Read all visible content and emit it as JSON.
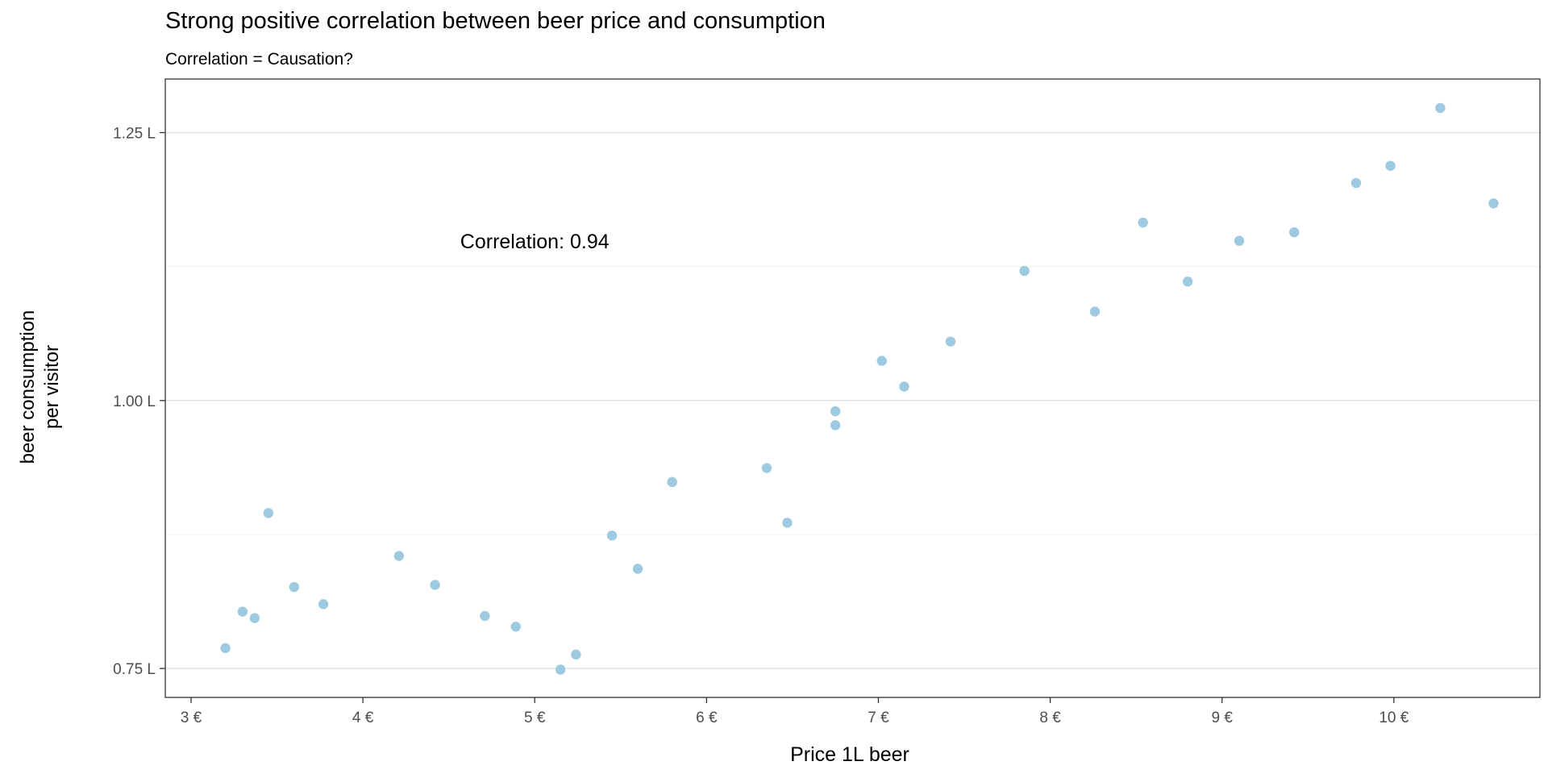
{
  "chart_data": {
    "type": "scatter",
    "title": "Strong positive correlation between beer price and consumption",
    "subtitle": "Correlation = Causation?",
    "xlabel": "Price 1L beer",
    "ylabel_lines": [
      "beer consumption",
      "per visitor"
    ],
    "annotation": "Correlation: 0.94",
    "annotation_at": {
      "x": 5.0,
      "y": 1.148
    },
    "xlim": [
      2.85,
      10.85
    ],
    "ylim": [
      0.723,
      1.3
    ],
    "x_ticks": [
      3,
      4,
      5,
      6,
      7,
      8,
      9,
      10
    ],
    "x_tick_labels": [
      "3 €",
      "4 €",
      "5 €",
      "6 €",
      "7 €",
      "8 €",
      "9 €",
      "10 €"
    ],
    "y_ticks": [
      0.75,
      1.0,
      1.25
    ],
    "y_tick_labels": [
      "0.75 L",
      "1.00 L",
      "1.25 L"
    ],
    "y_minor_grid": [
      0.875,
      1.125
    ],
    "grid": true,
    "point_color": "#9ecae1",
    "points": [
      {
        "x": 3.2,
        "y": 0.769
      },
      {
        "x": 3.3,
        "y": 0.803
      },
      {
        "x": 3.37,
        "y": 0.797
      },
      {
        "x": 3.45,
        "y": 0.895
      },
      {
        "x": 3.6,
        "y": 0.826
      },
      {
        "x": 3.77,
        "y": 0.81
      },
      {
        "x": 4.21,
        "y": 0.855
      },
      {
        "x": 4.42,
        "y": 0.828
      },
      {
        "x": 4.71,
        "y": 0.799
      },
      {
        "x": 4.89,
        "y": 0.789
      },
      {
        "x": 5.15,
        "y": 0.749
      },
      {
        "x": 5.24,
        "y": 0.763
      },
      {
        "x": 5.45,
        "y": 0.874
      },
      {
        "x": 5.6,
        "y": 0.843
      },
      {
        "x": 5.8,
        "y": 0.924
      },
      {
        "x": 6.35,
        "y": 0.937
      },
      {
        "x": 6.47,
        "y": 0.886
      },
      {
        "x": 6.75,
        "y": 0.99
      },
      {
        "x": 6.75,
        "y": 0.977
      },
      {
        "x": 7.02,
        "y": 1.037
      },
      {
        "x": 7.15,
        "y": 1.013
      },
      {
        "x": 7.42,
        "y": 1.055
      },
      {
        "x": 7.85,
        "y": 1.121
      },
      {
        "x": 8.26,
        "y": 1.083
      },
      {
        "x": 8.54,
        "y": 1.166
      },
      {
        "x": 8.8,
        "y": 1.111
      },
      {
        "x": 9.1,
        "y": 1.149
      },
      {
        "x": 9.42,
        "y": 1.157
      },
      {
        "x": 9.78,
        "y": 1.203
      },
      {
        "x": 9.98,
        "y": 1.219
      },
      {
        "x": 10.27,
        "y": 1.273
      },
      {
        "x": 10.58,
        "y": 1.184
      }
    ]
  }
}
